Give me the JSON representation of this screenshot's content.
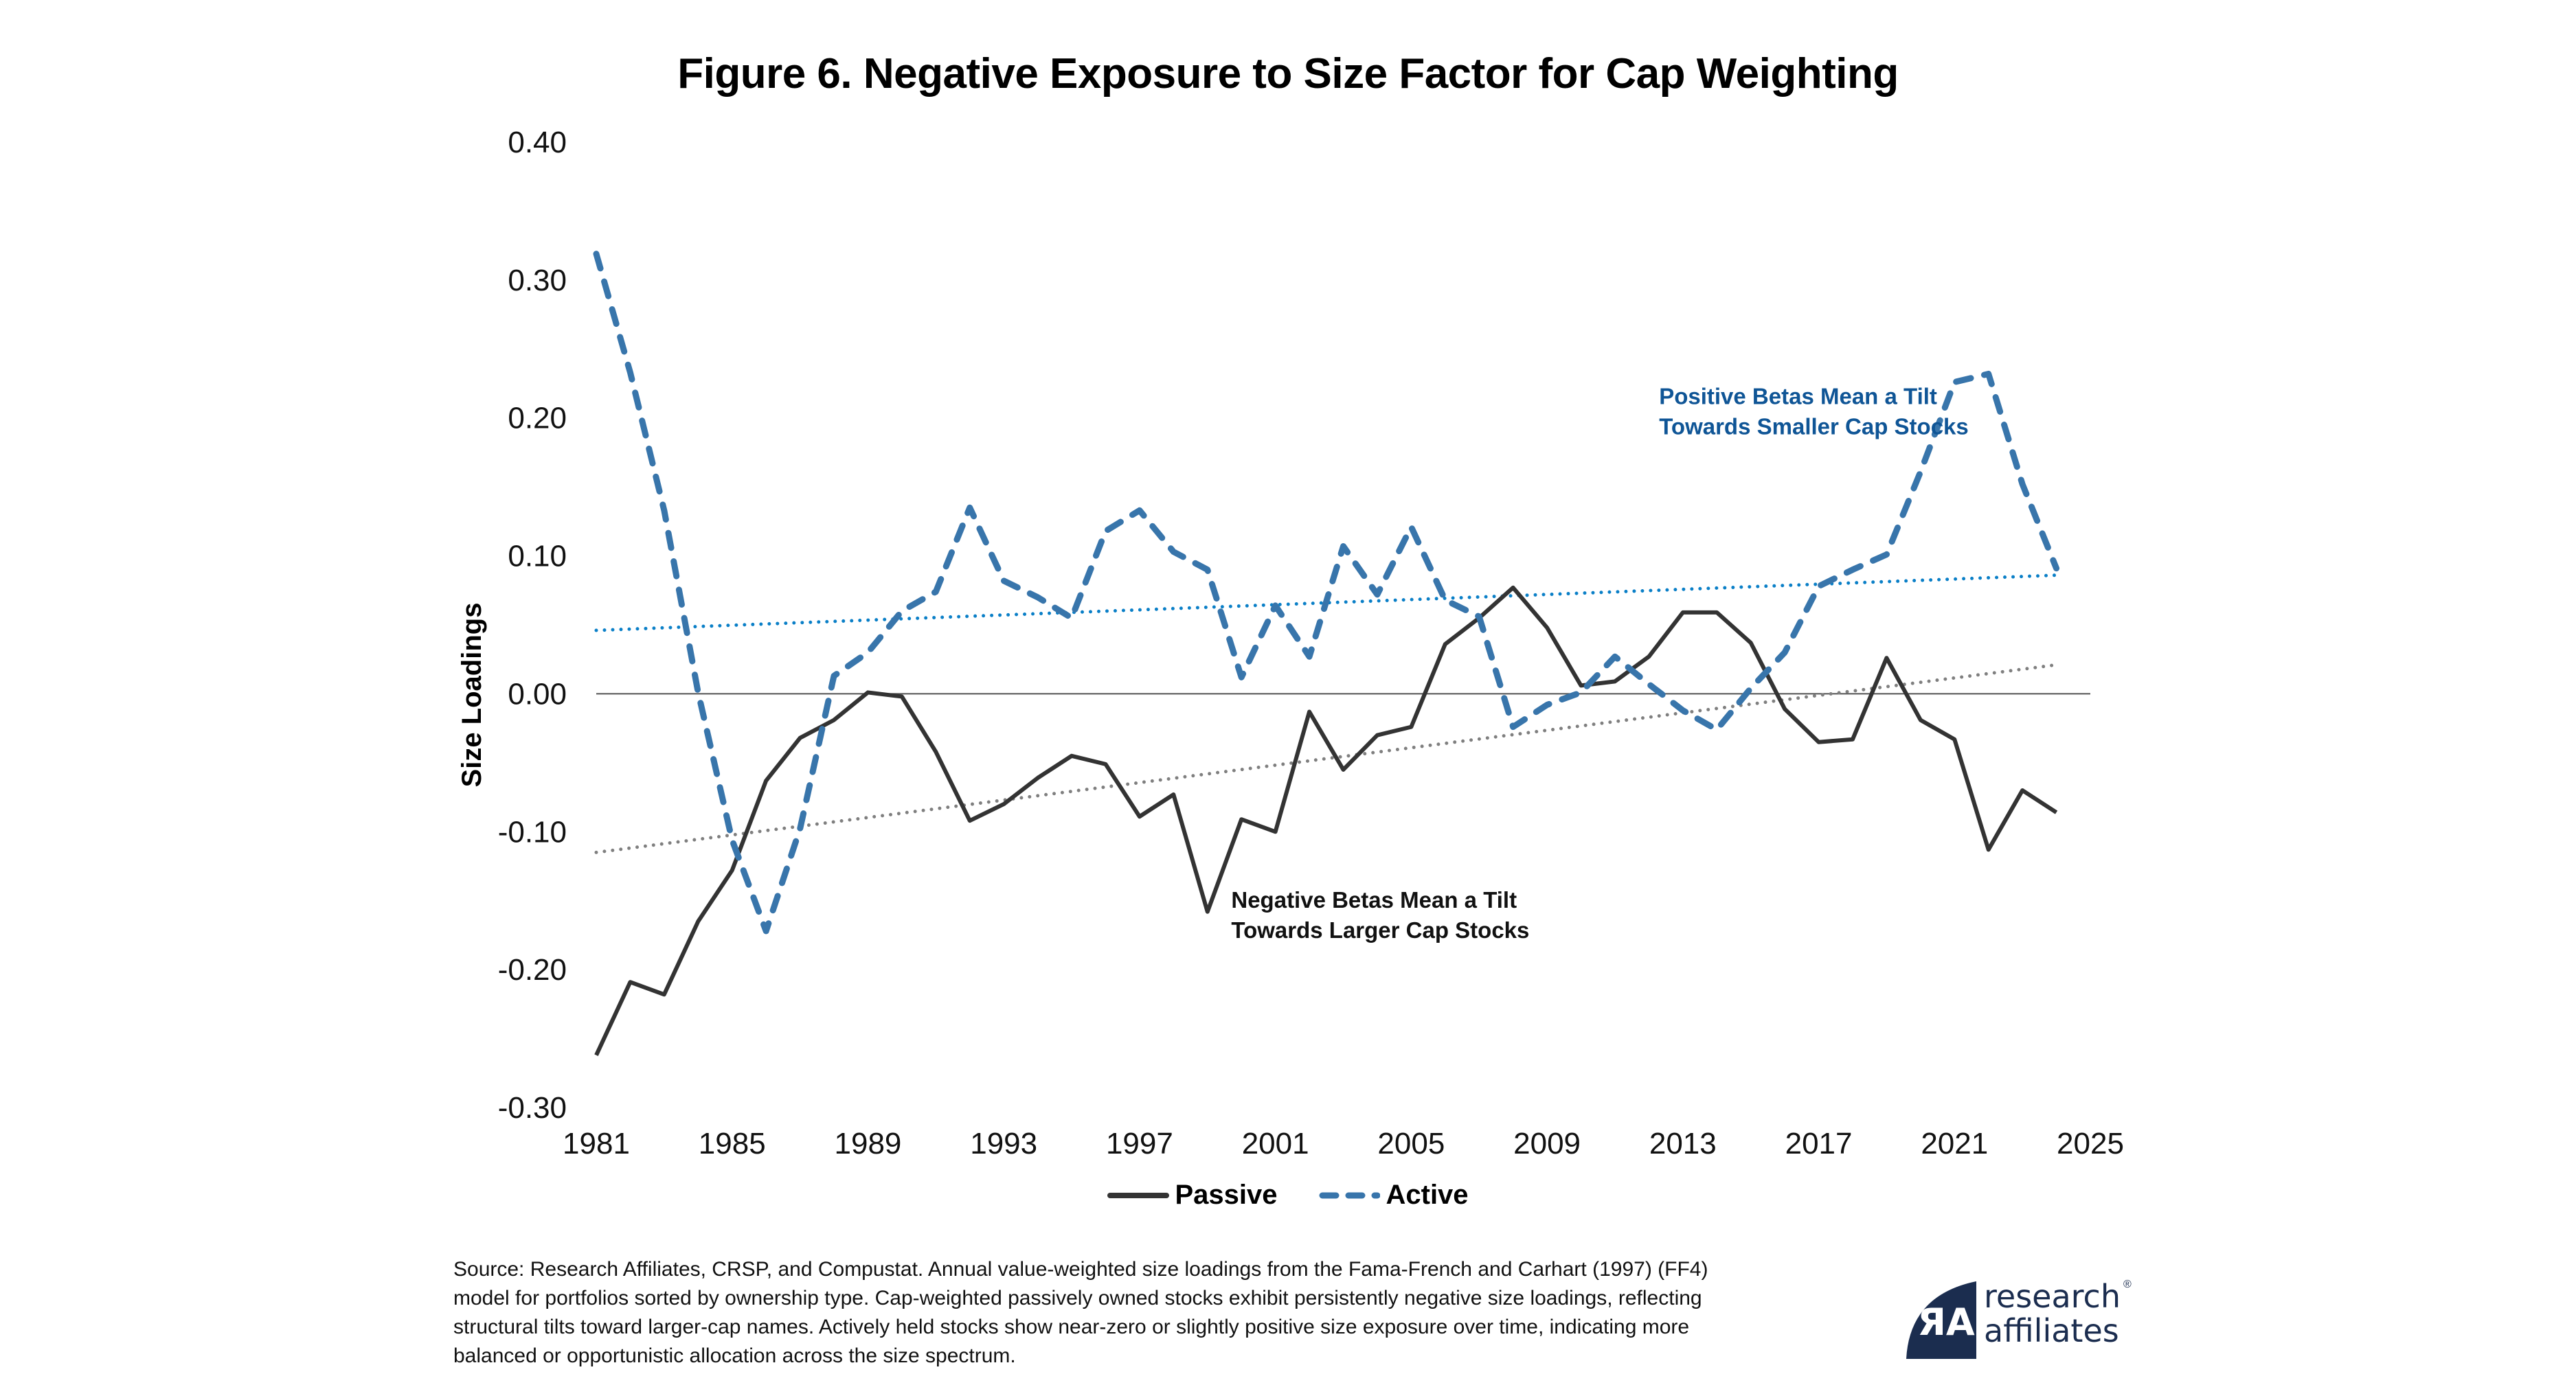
{
  "chart_data": {
    "type": "line",
    "title": "Figure 6. Negative Exposure to Size Factor for Cap Weighting",
    "xlabel": "",
    "ylabel": "Size Loadings",
    "xlim": [
      1981,
      2025
    ],
    "ylim": [
      -0.3,
      0.4
    ],
    "x_ticks": [
      "1981",
      "1985",
      "1989",
      "1993",
      "1997",
      "2001",
      "2005",
      "2009",
      "2013",
      "2017",
      "2021",
      "2025"
    ],
    "y_ticks": [
      "0.40",
      "0.30",
      "0.20",
      "0.10",
      "0.00",
      "-0.10",
      "-0.20",
      "-0.30"
    ],
    "grid": false,
    "zero_line": true,
    "x": [
      1981,
      1982,
      1983,
      1984,
      1985,
      1986,
      1987,
      1988,
      1989,
      1990,
      1991,
      1992,
      1993,
      1994,
      1995,
      1996,
      1997,
      1998,
      1999,
      2000,
      2001,
      2002,
      2003,
      2004,
      2005,
      2006,
      2007,
      2008,
      2009,
      2010,
      2011,
      2012,
      2013,
      2014,
      2015,
      2016,
      2017,
      2018,
      2019,
      2020,
      2021,
      2022,
      2023,
      2024
    ],
    "series": [
      {
        "name": "Passive",
        "style": "solid",
        "color": "#333333",
        "values": [
          -0.262,
          -0.209,
          -0.218,
          -0.165,
          -0.128,
          -0.063,
          -0.032,
          -0.019,
          0.001,
          -0.002,
          -0.042,
          -0.092,
          -0.08,
          -0.061,
          -0.045,
          -0.051,
          -0.089,
          -0.073,
          -0.158,
          -0.091,
          -0.1,
          -0.013,
          -0.055,
          -0.03,
          -0.024,
          0.036,
          0.055,
          0.077,
          0.048,
          0.006,
          0.009,
          0.027,
          0.059,
          0.059,
          0.037,
          -0.011,
          -0.035,
          -0.033,
          0.026,
          -0.019,
          -0.033,
          -0.113,
          -0.07,
          -0.086
        ]
      },
      {
        "name": "Active",
        "style": "dashed",
        "color": "#3875ab",
        "values": [
          0.319,
          0.233,
          0.133,
          0.001,
          -0.106,
          -0.172,
          -0.098,
          0.013,
          0.03,
          0.06,
          0.074,
          0.135,
          0.082,
          0.07,
          0.055,
          0.118,
          0.133,
          0.103,
          0.09,
          0.012,
          0.064,
          0.027,
          0.107,
          0.072,
          0.121,
          0.068,
          0.056,
          -0.024,
          -0.008,
          0.001,
          0.027,
          0.007,
          -0.012,
          -0.026,
          0.004,
          0.03,
          0.078,
          0.09,
          0.101,
          0.161,
          0.226,
          0.232,
          0.152,
          0.091
        ]
      }
    ],
    "trendlines": [
      {
        "name": "Active trend",
        "color": "#0a7fc7",
        "style": "dotted",
        "x": [
          1981,
          2024
        ],
        "values": [
          0.046,
          0.086
        ]
      },
      {
        "name": "Passive trend",
        "color": "#7f7f7f",
        "style": "dotted",
        "x": [
          1981,
          2024
        ],
        "values": [
          -0.115,
          0.021
        ]
      }
    ],
    "annotations": [
      {
        "lines": [
          "Positive Betas Mean a Tilt",
          "Towards Smaller Cap Stocks"
        ],
        "color": "#0f5596",
        "anchor_x": 2012.3,
        "anchor_y": 0.21
      },
      {
        "lines": [
          "Negative Betas Mean a Tilt",
          "Towards Larger Cap Stocks"
        ],
        "color": "#111111",
        "anchor_x": 1999.7,
        "anchor_y": -0.155
      }
    ],
    "legend": {
      "placement": "bottom-center",
      "entries": [
        "Passive",
        "Active"
      ]
    }
  },
  "footnote": "Source: Research Affiliates, CRSP, and Compustat. Annual value-weighted size loadings from the Fama-French and Carhart (1997) (FF4) model for portfolios sorted by ownership type. Cap-weighted passively owned stocks exhibit persistently negative size loadings, reflecting structural tilts toward larger-cap names. Actively held stocks show near-zero or slightly positive size exposure over time, indicating more balanced or opportunistic allocation across the size spectrum.",
  "logo": {
    "line1": "research",
    "line2": "affiliates",
    "registered": "®",
    "color": "#1b2d4f"
  }
}
